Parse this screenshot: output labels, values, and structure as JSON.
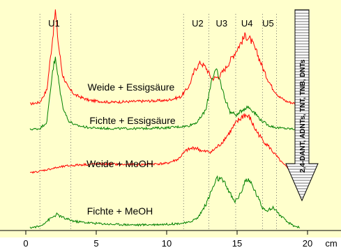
{
  "chart_data": {
    "type": "line",
    "title": "",
    "xlabel": "",
    "ylabel": "",
    "x_unit": "cm",
    "xlim": [
      0,
      20
    ],
    "xticks": [
      "0",
      "5",
      "10",
      "15",
      "20"
    ],
    "grid": false,
    "background_color": "#ffffcc",
    "region_markers": [
      {
        "name": "U1",
        "x": 2.0
      },
      {
        "name": "U2",
        "x": 12.2
      },
      {
        "name": "U3",
        "x": 13.9
      },
      {
        "name": "U4",
        "x": 15.7
      },
      {
        "name": "U5",
        "x": 17.2
      }
    ],
    "dotted_lines_x": [
      1.0,
      3.2,
      11.2,
      13.0,
      14.9,
      16.8,
      17.8
    ],
    "arrow_label": "2,4-DANT, ADNTs, TNT, TNB, DNTs",
    "series": [
      {
        "name": "Weide + Essigsäure",
        "color": "#ff0000",
        "x": [
          0.3,
          1.0,
          1.5,
          1.9,
          2.1,
          2.3,
          2.6,
          3.0,
          3.5,
          4.5,
          6.0,
          8.0,
          10.0,
          11.0,
          11.6,
          12.0,
          12.4,
          12.8,
          13.2,
          13.7,
          14.2,
          14.7,
          15.2,
          15.6,
          16.0,
          16.5,
          17.0,
          17.5,
          18.0,
          18.5,
          19.0,
          19.5
        ],
        "values": [
          0.02,
          0.04,
          0.18,
          0.75,
          1.05,
          0.7,
          0.35,
          0.2,
          0.12,
          0.06,
          0.04,
          0.05,
          0.06,
          0.1,
          0.22,
          0.4,
          0.48,
          0.42,
          0.3,
          0.32,
          0.42,
          0.55,
          0.68,
          0.78,
          0.72,
          0.55,
          0.35,
          0.2,
          0.1,
          0.05,
          0.03,
          0.02
        ]
      },
      {
        "name": "Fichte + Essigsäure",
        "color": "#008000",
        "x": [
          0.3,
          1.0,
          1.5,
          1.9,
          2.1,
          2.3,
          2.6,
          3.0,
          3.5,
          4.5,
          6.0,
          8.0,
          10.0,
          11.5,
          12.2,
          12.8,
          13.2,
          13.5,
          13.8,
          14.1,
          14.5,
          15.0,
          15.4,
          15.8,
          16.2,
          16.7,
          17.2,
          17.8,
          18.5,
          19.5
        ],
        "values": [
          0.01,
          0.02,
          0.1,
          0.72,
          0.85,
          0.62,
          0.3,
          0.12,
          0.06,
          0.03,
          0.02,
          0.02,
          0.03,
          0.05,
          0.1,
          0.25,
          0.62,
          0.72,
          0.58,
          0.4,
          0.22,
          0.18,
          0.25,
          0.28,
          0.22,
          0.12,
          0.06,
          0.03,
          0.02,
          0.01
        ]
      },
      {
        "name": "Weide + MeOH",
        "color": "#ff0000",
        "x": [
          0.3,
          1.0,
          2.0,
          3.0,
          4.0,
          5.0,
          6.0,
          7.0,
          8.0,
          9.0,
          10.0,
          10.8,
          11.4,
          12.0,
          12.6,
          13.2,
          13.8,
          14.4,
          15.0,
          15.5,
          15.9,
          16.3,
          16.8,
          17.3,
          17.8,
          18.3,
          18.8,
          19.5
        ],
        "values": [
          0.02,
          0.05,
          0.1,
          0.14,
          0.16,
          0.17,
          0.17,
          0.16,
          0.16,
          0.17,
          0.18,
          0.25,
          0.4,
          0.45,
          0.38,
          0.38,
          0.5,
          0.68,
          0.88,
          1.0,
          0.95,
          0.75,
          0.58,
          0.45,
          0.3,
          0.16,
          0.07,
          0.02
        ]
      },
      {
        "name": "Fichte + MeOH",
        "color": "#008000",
        "x": [
          0.3,
          1.0,
          1.6,
          2.2,
          2.8,
          3.5,
          4.5,
          6.0,
          8.0,
          10.0,
          11.5,
          12.2,
          12.8,
          13.2,
          13.6,
          14.0,
          14.4,
          14.8,
          15.2,
          15.6,
          16.0,
          16.4,
          16.8,
          17.2,
          17.6,
          18.0,
          18.5,
          19.0,
          19.5
        ],
        "values": [
          0.01,
          0.03,
          0.12,
          0.2,
          0.14,
          0.1,
          0.08,
          0.06,
          0.05,
          0.06,
          0.08,
          0.15,
          0.35,
          0.55,
          0.72,
          0.68,
          0.55,
          0.38,
          0.48,
          0.7,
          0.65,
          0.48,
          0.3,
          0.26,
          0.3,
          0.2,
          0.1,
          0.04,
          0.01
        ]
      }
    ]
  }
}
